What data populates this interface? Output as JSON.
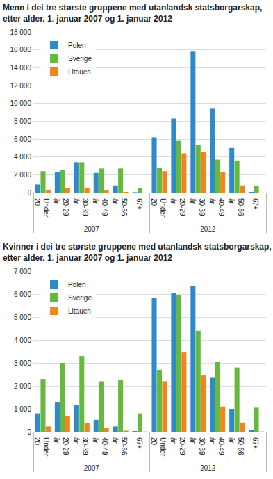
{
  "chart_data": [
    {
      "type": "bar",
      "title": "Menn i dei tre største gruppene med utanlandsk statsborgarskap,\netter alder. 1. januar 2007 og 1. januar 2012",
      "categories": [
        "Under 20",
        "20-29 år",
        "30-39 år",
        "40-49 år",
        "50-66 år",
        "67+",
        "Under 20",
        "20-29 år",
        "30-39 år",
        "40-49 år",
        "50-66 år",
        "67+"
      ],
      "category_groups": [
        "2007",
        "2007",
        "2007",
        "2007",
        "2007",
        "2007",
        "2012",
        "2012",
        "2012",
        "2012",
        "2012",
        "2012"
      ],
      "series": [
        {
          "name": "Polen",
          "color": "#2e8ac9",
          "values": [
            900,
            2300,
            3400,
            2200,
            800,
            50,
            6200,
            8300,
            15800,
            9400,
            5000,
            80
          ]
        },
        {
          "name": "Sverige",
          "color": "#67b93e",
          "values": [
            2400,
            2500,
            3400,
            2700,
            2700,
            500,
            2800,
            5800,
            5300,
            3700,
            3600,
            700
          ]
        },
        {
          "name": "Litauen",
          "color": "#f2841f",
          "values": [
            300,
            500,
            500,
            250,
            80,
            0,
            2400,
            4400,
            4600,
            2300,
            800,
            10
          ]
        }
      ],
      "ylim": [
        0,
        18000
      ],
      "yticks": [
        0,
        {
          "value": 2000,
          "label": "2 000"
        },
        {
          "value": 4000,
          "label": "4 000"
        },
        {
          "value": 6000,
          "label": "6 000"
        },
        {
          "value": 8000,
          "label": "8 000"
        },
        {
          "value": 10000,
          "label": "10 000"
        },
        {
          "value": 12000,
          "label": "12 000"
        },
        {
          "value": 14000,
          "label": "14 000"
        },
        {
          "value": 16000,
          "label": "16 000"
        },
        {
          "value": 18000,
          "label": "18 000"
        }
      ],
      "grid": true,
      "legend": "top left"
    },
    {
      "type": "bar",
      "title": "Kvinner i dei tre største gruppene med utanlandsk statsborgarskap,\netter alder. 1. januar 2007 og 1. januar 2012",
      "categories": [
        "Under 20",
        "20-29 år",
        "30-39 år",
        "40-49 år",
        "50-66 år",
        "67+",
        "Under 20",
        "20-29 år",
        "30-39 år",
        "40-49 år",
        "50-66 år",
        "67+"
      ],
      "category_groups": [
        "2007",
        "2007",
        "2007",
        "2007",
        "2007",
        "2007",
        "2012",
        "2012",
        "2012",
        "2012",
        "2012",
        "2012"
      ],
      "series": [
        {
          "name": "Polen",
          "color": "#2e8ac9",
          "values": [
            800,
            1300,
            1150,
            520,
            230,
            30,
            5850,
            6050,
            6350,
            2350,
            1000,
            60
          ]
        },
        {
          "name": "Sverige",
          "color": "#67b93e",
          "values": [
            2300,
            3000,
            3300,
            2200,
            2250,
            800,
            2700,
            5950,
            4400,
            3050,
            2800,
            1050
          ]
        },
        {
          "name": "Litauen",
          "color": "#f2841f",
          "values": [
            230,
            700,
            380,
            170,
            50,
            10,
            2200,
            3450,
            2450,
            1100,
            400,
            10
          ]
        }
      ],
      "ylim": [
        0,
        7000
      ],
      "yticks": [
        0,
        {
          "value": 1000,
          "label": "1 000"
        },
        {
          "value": 2000,
          "label": "2 000"
        },
        {
          "value": 3000,
          "label": "3 000"
        },
        {
          "value": 4000,
          "label": "4 000"
        },
        {
          "value": 5000,
          "label": "5 000"
        },
        {
          "value": 6000,
          "label": "6 000"
        },
        {
          "value": 7000,
          "label": "7 000"
        }
      ],
      "grid": true,
      "legend": "top left"
    }
  ]
}
